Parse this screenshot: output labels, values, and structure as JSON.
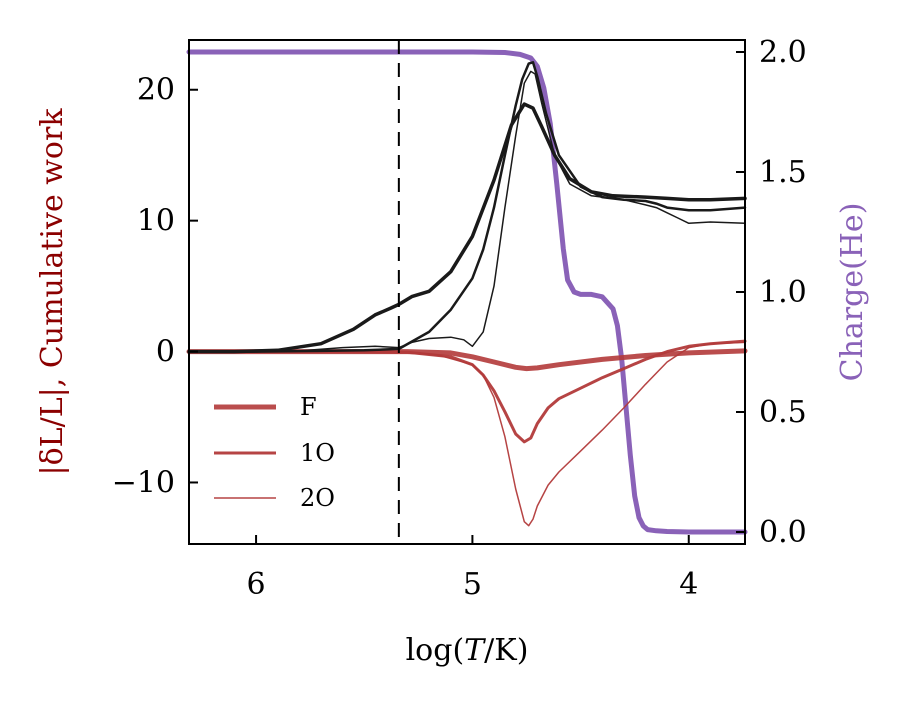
{
  "chart_data": {
    "type": "line",
    "xlabel": "log(T/K)",
    "x_reversed": true,
    "xlim": [
      6.31,
      3.74
    ],
    "x_ticks": [
      6,
      5,
      4
    ],
    "x_tick_labels": [
      "6",
      "5",
      "4"
    ],
    "ylim_left": [
      -14.7,
      23.8
    ],
    "y_left_ticks": [
      20,
      10,
      0,
      -10
    ],
    "y_left_tick_labels": [
      "20",
      "10",
      "0",
      "−10"
    ],
    "ylabel_left_parts": [
      "|δL/L|",
      ", Cumulative work"
    ],
    "ylim_right": [
      -0.05,
      2.05
    ],
    "y_right_ticks": [
      2.0,
      1.5,
      1.0,
      0.5,
      0.0
    ],
    "y_right_tick_labels": [
      "2.0",
      "1.5",
      "1.0",
      "0.5",
      "0.0"
    ],
    "ylabel_right": "Charge(He)",
    "vline_x": 5.34,
    "colors": {
      "black": "#1a1a1a",
      "red": "#b23a3a",
      "purple": "#8a62b8",
      "dark_red": "#8b0000"
    },
    "legend": [
      {
        "label": "F",
        "series": "cumwork-F"
      },
      {
        "label": "1O",
        "series": "cumwork-1O"
      },
      {
        "label": "2O",
        "series": "cumwork-2O"
      }
    ],
    "series": [
      {
        "name": "dL/L-F",
        "axis": "left",
        "color": "#1a1a1a",
        "width": 3.5,
        "alpha": 1,
        "x": [
          6.31,
          6.1,
          5.9,
          5.7,
          5.55,
          5.45,
          5.38,
          5.34,
          5.28,
          5.2,
          5.1,
          5.0,
          4.9,
          4.82,
          4.76,
          4.72,
          4.68,
          4.62,
          4.55,
          4.45,
          4.35,
          4.2,
          4.1,
          4.0,
          3.9,
          3.74
        ],
        "y": [
          0,
          0,
          0.1,
          0.6,
          1.7,
          2.8,
          3.3,
          3.6,
          4.2,
          4.6,
          6.1,
          8.8,
          13.1,
          17.3,
          18.9,
          18.6,
          17.2,
          15.0,
          13.2,
          12.2,
          11.9,
          11.8,
          11.7,
          11.6,
          11.6,
          11.7
        ]
      },
      {
        "name": "dL/L-1O",
        "axis": "left",
        "color": "#1a1a1a",
        "width": 2.5,
        "alpha": 1,
        "x": [
          6.31,
          6.0,
          5.7,
          5.5,
          5.34,
          5.2,
          5.1,
          5.0,
          4.95,
          4.9,
          4.85,
          4.8,
          4.77,
          4.74,
          4.72,
          4.7,
          4.66,
          4.6,
          4.5,
          4.4,
          4.3,
          4.2,
          4.15,
          4.1,
          4.0,
          3.9,
          3.74
        ],
        "y": [
          0,
          0,
          0.05,
          0.1,
          0.2,
          1.5,
          3.2,
          5.6,
          7.8,
          11.0,
          15.0,
          18.8,
          20.8,
          22.0,
          22.1,
          21.0,
          18.2,
          15.0,
          12.6,
          11.8,
          11.6,
          11.5,
          11.3,
          11.0,
          10.8,
          10.8,
          11.0
        ]
      },
      {
        "name": "dL/L-2O",
        "axis": "left",
        "color": "#1a1a1a",
        "width": 1.5,
        "alpha": 1,
        "x": [
          6.31,
          6.0,
          5.8,
          5.6,
          5.45,
          5.34,
          5.28,
          5.2,
          5.1,
          5.04,
          5.0,
          4.95,
          4.9,
          4.85,
          4.8,
          4.76,
          4.73,
          4.71,
          4.68,
          4.62,
          4.55,
          4.45,
          4.3,
          4.2,
          4.15,
          4.1,
          4.05,
          4.0,
          3.9,
          3.74
        ],
        "y": [
          0,
          0,
          0.05,
          0.3,
          0.4,
          0.3,
          0.7,
          1.0,
          1.1,
          0.9,
          0.4,
          1.5,
          5.0,
          11.0,
          16.5,
          20.5,
          21.4,
          21.2,
          19.0,
          15.0,
          12.8,
          11.9,
          11.6,
          11.2,
          11.0,
          10.6,
          10.2,
          9.8,
          9.9,
          9.8
        ]
      },
      {
        "name": "cumwork-F",
        "axis": "left",
        "color": "#b23a3a",
        "width": 5,
        "alpha": 0.9,
        "x": [
          6.31,
          5.6,
          5.3,
          5.1,
          5.0,
          4.9,
          4.8,
          4.75,
          4.7,
          4.6,
          4.4,
          4.2,
          4.0,
          3.74
        ],
        "y": [
          0,
          0,
          0,
          -0.1,
          -0.4,
          -0.8,
          -1.2,
          -1.3,
          -1.25,
          -1.0,
          -0.6,
          -0.3,
          -0.1,
          0.05
        ]
      },
      {
        "name": "cumwork-1O",
        "axis": "left",
        "color": "#b23a3a",
        "width": 3,
        "alpha": 0.95,
        "x": [
          6.31,
          5.6,
          5.3,
          5.1,
          5.0,
          4.95,
          4.9,
          4.85,
          4.8,
          4.76,
          4.73,
          4.7,
          4.65,
          4.6,
          4.5,
          4.4,
          4.3,
          4.2,
          4.1,
          4.0,
          3.9,
          3.74
        ],
        "y": [
          0,
          0,
          -0.05,
          -0.4,
          -1.0,
          -1.8,
          -3.0,
          -4.6,
          -6.3,
          -6.9,
          -6.6,
          -5.5,
          -4.3,
          -3.6,
          -2.8,
          -2.0,
          -1.3,
          -0.6,
          0.0,
          0.4,
          0.6,
          0.8
        ]
      },
      {
        "name": "cumwork-2O",
        "axis": "left",
        "color": "#b23a3a",
        "width": 1.5,
        "alpha": 0.95,
        "x": [
          6.31,
          5.6,
          5.3,
          5.15,
          5.0,
          4.95,
          4.9,
          4.85,
          4.8,
          4.76,
          4.74,
          4.72,
          4.7,
          4.65,
          4.6,
          4.5,
          4.4,
          4.3,
          4.2,
          4.1,
          4.0,
          3.9,
          3.74
        ],
        "y": [
          0,
          0,
          -0.05,
          -0.3,
          -1.0,
          -1.8,
          -3.5,
          -6.5,
          -10.5,
          -13.0,
          -13.3,
          -12.8,
          -11.8,
          -10.2,
          -9.2,
          -7.6,
          -6.0,
          -4.3,
          -2.5,
          -0.8,
          0.3,
          0.6,
          0.7
        ]
      },
      {
        "name": "charge-He",
        "axis": "right",
        "color": "#8a62b8",
        "width": 5,
        "alpha": 1,
        "x": [
          6.31,
          5.0,
          4.85,
          4.78,
          4.73,
          4.7,
          4.67,
          4.64,
          4.61,
          4.58,
          4.56,
          4.53,
          4.5,
          4.45,
          4.4,
          4.35,
          4.33,
          4.31,
          4.29,
          4.27,
          4.25,
          4.23,
          4.21,
          4.19,
          4.15,
          4.1,
          4.0,
          3.74
        ],
        "y": [
          2.0,
          2.0,
          1.998,
          1.99,
          1.975,
          1.94,
          1.85,
          1.7,
          1.45,
          1.18,
          1.05,
          1.0,
          0.99,
          0.99,
          0.98,
          0.93,
          0.86,
          0.72,
          0.52,
          0.32,
          0.15,
          0.06,
          0.025,
          0.01,
          0.005,
          0.002,
          0.0,
          0.0
        ]
      }
    ]
  }
}
